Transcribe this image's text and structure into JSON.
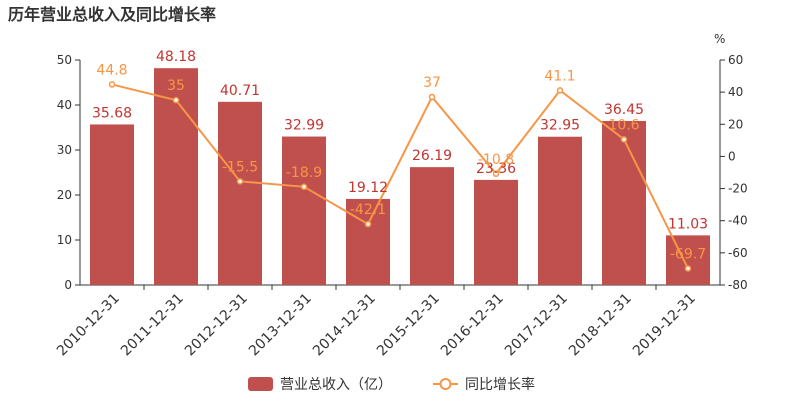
{
  "chart_data": {
    "type": "bar",
    "title": "历年营业总收入及同比增长率",
    "categories": [
      "2010-12-31",
      "2011-12-31",
      "2012-12-31",
      "2013-12-31",
      "2014-12-31",
      "2015-12-31",
      "2016-12-31",
      "2017-12-31",
      "2018-12-31",
      "2019-12-31"
    ],
    "series": [
      {
        "name": "营业总收入（亿）",
        "type": "bar",
        "axis": "left",
        "values": [
          35.68,
          48.18,
          40.71,
          32.99,
          19.12,
          26.19,
          23.36,
          32.95,
          36.45,
          11.03
        ],
        "color": "#c0504d"
      },
      {
        "name": "同比增长率",
        "type": "line",
        "axis": "right",
        "values": [
          44.8,
          35,
          -15.5,
          -18.9,
          -42.1,
          37,
          -10.8,
          41.1,
          10.6,
          -69.7
        ],
        "color": "#f79646"
      }
    ],
    "yleft": {
      "ylim": [
        0,
        50
      ],
      "ticks": [
        0,
        10,
        20,
        30,
        40,
        50
      ]
    },
    "yright": {
      "ylim": [
        -80,
        60
      ],
      "ticks": [
        -80,
        -60,
        -40,
        -20,
        0,
        20,
        40,
        60
      ],
      "unit": "%"
    },
    "legend_position": "bottom-center",
    "grid": false,
    "bar_label_color": "#c23531",
    "line_label_color": "#f79646"
  }
}
